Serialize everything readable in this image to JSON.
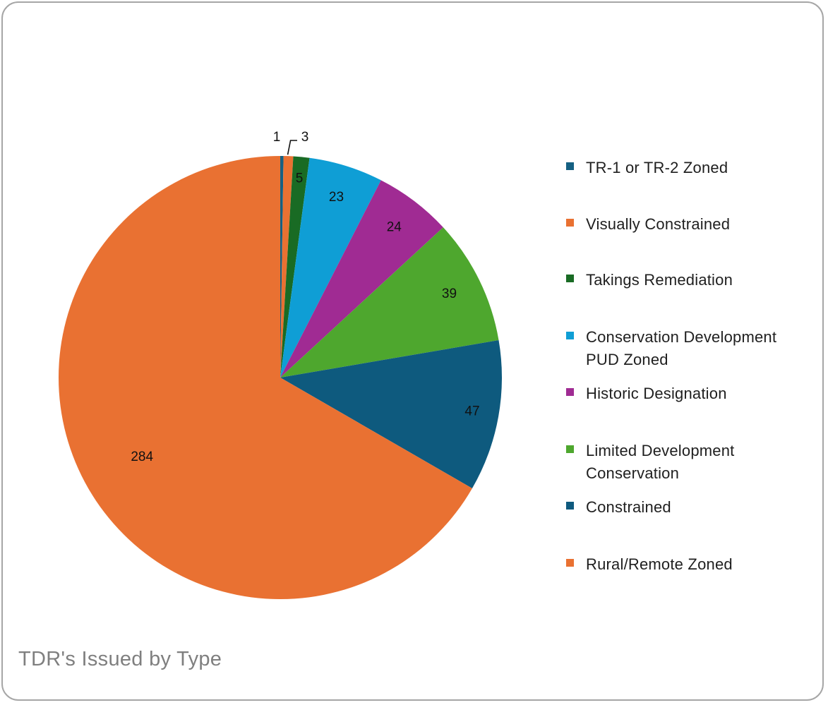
{
  "chart_data": {
    "type": "pie",
    "title": "TDR's Issued by Type",
    "legend_position": "right",
    "slices": [
      {
        "label": "TR-1 or TR-2 Zoned",
        "value": 1,
        "data_label": "1",
        "color": "#156082"
      },
      {
        "label": "Visually Constrained",
        "value": 3,
        "data_label": "3",
        "color": "#e97132"
      },
      {
        "label": "Takings Remediation",
        "value": 5,
        "data_label": "5",
        "color": "#196b24"
      },
      {
        "label": "Conservation Development PUD Zoned",
        "value": 23,
        "data_label": "23",
        "color": "#0f9ed5"
      },
      {
        "label": "Historic Designation",
        "value": 24,
        "data_label": "24",
        "color": "#a02b93"
      },
      {
        "label": "Limited Development Conservation",
        "value": 39,
        "data_label": "39",
        "color": "#4ea72e"
      },
      {
        "label": "Constrained",
        "value": 47,
        "data_label": "47",
        "color": "#0e5a7e"
      },
      {
        "label": "Rural/Remote Zoned",
        "value": 284,
        "data_label": "284",
        "color": "#e97132"
      }
    ]
  }
}
